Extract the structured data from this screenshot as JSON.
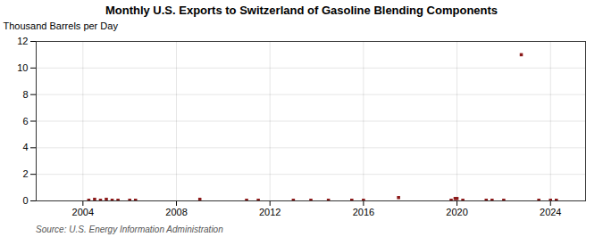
{
  "chart_data": {
    "type": "scatter",
    "title": "Monthly U.S. Exports to Switzerland of Gasoline Blending Components",
    "ylabel": "Thousand Barrels per Day",
    "source": "Source: U.S. Energy Information Administration",
    "x": [
      2004.25,
      2004.5,
      2004.75,
      2005.0,
      2005.25,
      2005.5,
      2006.0,
      2006.25,
      2009.0,
      2011.0,
      2011.5,
      2013.0,
      2013.75,
      2014.5,
      2015.5,
      2016.0,
      2017.5,
      2019.75,
      2019.92,
      2020.0,
      2020.25,
      2021.25,
      2021.5,
      2022.0,
      2022.75,
      2023.5,
      2024.0,
      2024.25
    ],
    "values": [
      0.05,
      0.12,
      0.05,
      0.12,
      0.05,
      0.05,
      0.05,
      0.05,
      0.12,
      0.05,
      0.05,
      0.05,
      0.05,
      0.05,
      0.05,
      0.05,
      0.25,
      0.05,
      0.18,
      0.18,
      0.05,
      0.05,
      0.05,
      0.05,
      11.0,
      0.05,
      0.05,
      0.05
    ],
    "color": "#8b1a1a",
    "marker": "square",
    "xlim": [
      2002.0,
      2025.5
    ],
    "xticks": [
      2004,
      2008,
      2012,
      2016,
      2020,
      2024
    ],
    "ylim": [
      0,
      12
    ],
    "yticks": [
      0,
      2,
      4,
      6,
      8,
      10,
      12
    ],
    "grid": true
  }
}
